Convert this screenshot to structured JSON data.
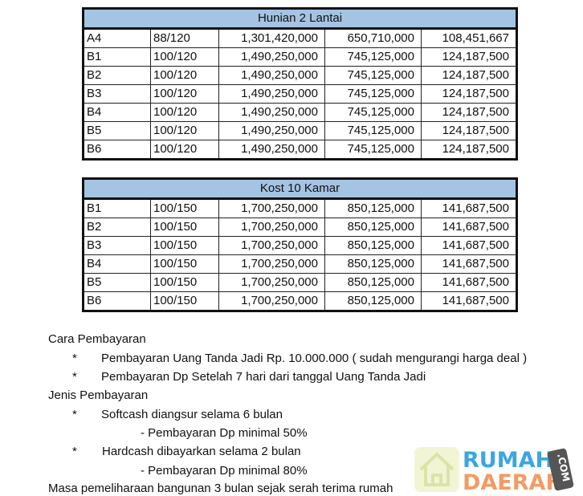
{
  "tables": [
    {
      "title": "Hunian 2 Lantai",
      "rows": [
        [
          "A4",
          "88/120",
          "1,301,420,000",
          "650,710,000",
          "108,451,667"
        ],
        [
          "B1",
          "100/120",
          "1,490,250,000",
          "745,125,000",
          "124,187,500"
        ],
        [
          "B2",
          "100/120",
          "1,490,250,000",
          "745,125,000",
          "124,187,500"
        ],
        [
          "B3",
          "100/120",
          "1,490,250,000",
          "745,125,000",
          "124,187,500"
        ],
        [
          "B4",
          "100/120",
          "1,490,250,000",
          "745,125,000",
          "124,187,500"
        ],
        [
          "B5",
          "100/120",
          "1,490,250,000",
          "745,125,000",
          "124,187,500"
        ],
        [
          "B6",
          "100/120",
          "1,490,250,000",
          "745,125,000",
          "124,187,500"
        ]
      ]
    },
    {
      "title": "Kost 10 Kamar",
      "rows": [
        [
          "B1",
          "100/150",
          "1,700,250,000",
          "850,125,000",
          "141,687,500"
        ],
        [
          "B2",
          "100/150",
          "1,700,250,000",
          "850,125,000",
          "141,687,500"
        ],
        [
          "B3",
          "100/150",
          "1,700,250,000",
          "850,125,000",
          "141,687,500"
        ],
        [
          "B4",
          "100/150",
          "1,700,250,000",
          "850,125,000",
          "141,687,500"
        ],
        [
          "B5",
          "100/150",
          "1,700,250,000",
          "850,125,000",
          "141,687,500"
        ],
        [
          "B6",
          "100/150",
          "1,700,250,000",
          "850,125,000",
          "141,687,500"
        ]
      ]
    }
  ],
  "notes": [
    "Cara Pembayaran",
    "*",
    "Pembayaran Uang Tanda Jadi Rp. 10.000.000 ( sudah mengurangi harga deal )",
    "*",
    "Pembayaran Dp Setelah 7 hari dari tanggal Uang Tanda Jadi",
    "Jenis Pembayaran",
    "*",
    "Softcash diangsur selama 6 bulan",
    "- Pembayaran Dp minimal 50%",
    "*",
    "Hardcash dibayarkan selama  2 bulan",
    "- Pembayaran Dp minimal 80%",
    "Masa pemeliharaan bangunan 3 bulan sejak serah terima rumah"
  ],
  "watermark": {
    "line1": "RUMAH",
    "line2": "DAERAH",
    "tag": ".COM",
    "colors": {
      "line1": "#3ba6e0",
      "line2": "#f08a4b",
      "tag": "#555555",
      "house": "#e8eec0"
    }
  }
}
